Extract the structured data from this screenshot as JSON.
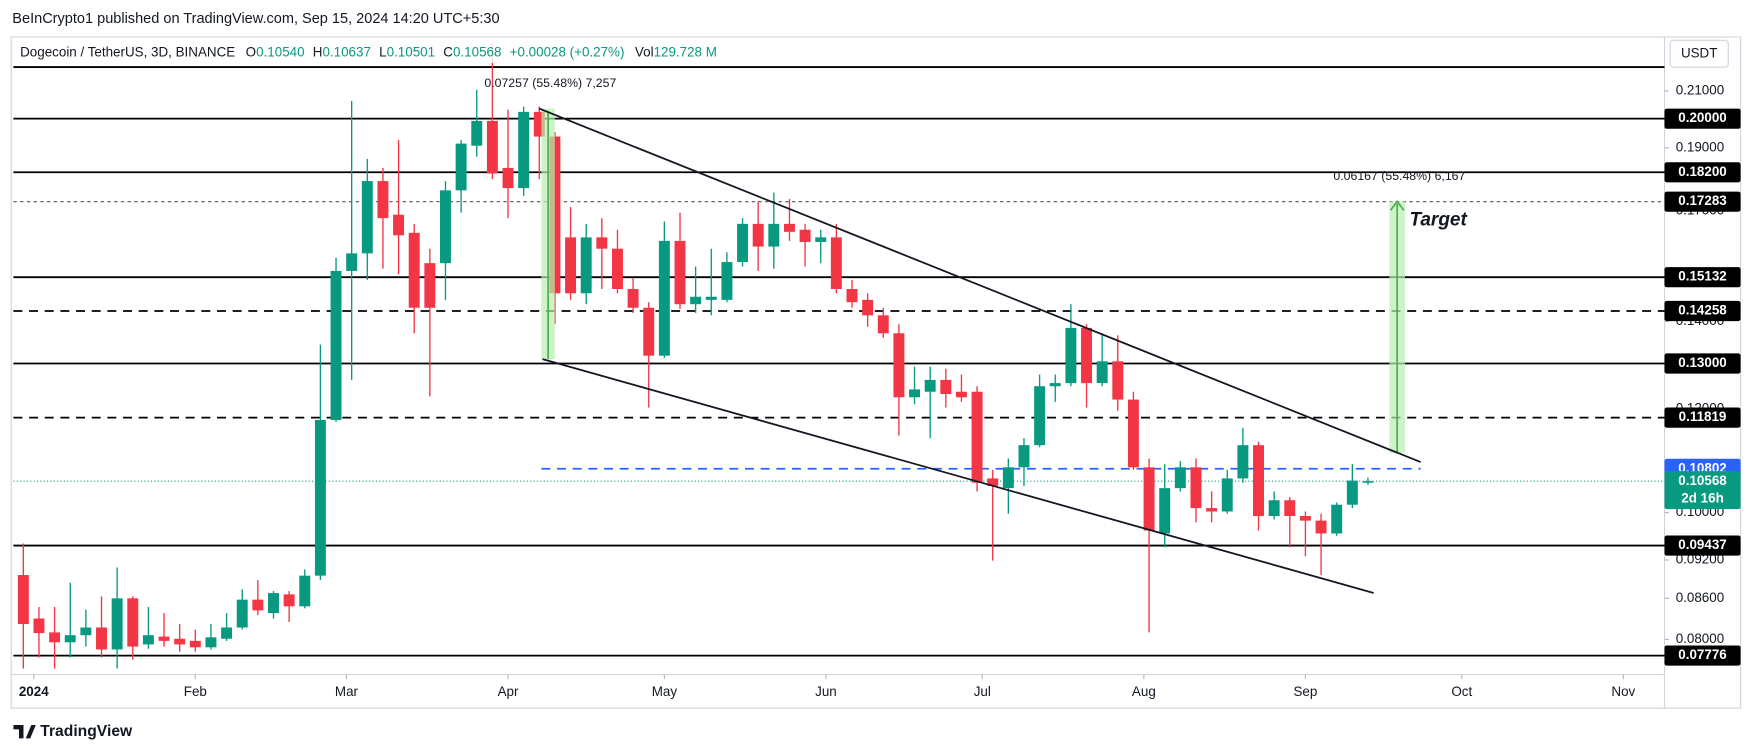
{
  "header": {
    "published": "BeInCrypto1 published on TradingView.com, Sep 15, 2024 14:20 UTC+5:30",
    "symbol": "Dogecoin / TetherUS, 3D, BINANCE",
    "o_label": "O",
    "o": "0.10540",
    "h_label": "H",
    "h": "0.10637",
    "l_label": "L",
    "l": "0.10501",
    "c_label": "C",
    "c": "0.10568",
    "change": "+0.00028 (+0.27%)",
    "vol_label": "Vol",
    "vol": "129.728 M",
    "currency": "USDT",
    "brand": "TradingView"
  },
  "chart_data": {
    "type": "candlestick",
    "log_scale": true,
    "grid": false,
    "up_color": "#089981",
    "down_color": "#f23645",
    "x": [
      -2,
      1,
      4,
      7,
      10,
      13,
      16,
      19,
      22,
      25,
      28,
      31,
      34,
      37,
      40,
      43,
      46,
      49,
      52,
      55,
      58,
      61,
      64,
      67,
      70,
      73,
      76,
      79,
      82,
      85,
      88,
      91,
      94,
      97,
      100,
      103,
      106,
      109,
      112,
      115,
      118,
      121,
      124,
      127,
      130,
      133,
      136,
      139,
      142,
      145,
      148,
      151,
      154,
      157,
      160,
      163,
      166,
      169,
      172,
      175,
      178,
      181,
      184,
      187,
      190,
      193,
      196,
      199,
      202,
      205,
      208,
      211,
      214,
      217,
      220,
      223,
      226,
      229,
      232,
      235,
      238,
      241,
      244,
      247,
      250,
      253,
      256
    ],
    "open": [
      0.0896,
      0.083,
      0.081,
      0.0796,
      0.0806,
      0.0817,
      0.0786,
      0.086,
      0.0793,
      0.0804,
      0.0801,
      0.0798,
      0.0789,
      0.0801,
      0.0817,
      0.0858,
      0.0838,
      0.0866,
      0.0848,
      0.0895,
      0.1177,
      0.153,
      0.1578,
      0.1792,
      0.1689,
      0.1636,
      0.1551,
      0.1551,
      0.1763,
      0.1907,
      0.1992,
      0.1834,
      0.177,
      0.2024,
      0.1938,
      0.1623,
      0.1471,
      0.1623,
      0.1591,
      0.1482,
      0.1434,
      0.1318,
      0.1613,
      0.1443,
      0.1454,
      0.1454,
      0.1554,
      0.1662,
      0.1597,
      0.1662,
      0.1645,
      0.161,
      0.1623,
      0.1482,
      0.1454,
      0.1415,
      0.1371,
      0.1225,
      0.1237,
      0.1263,
      0.1237,
      0.1237,
      0.1062,
      0.1044,
      0.1083,
      0.1126,
      0.1249,
      0.1256,
      0.1384,
      0.1256,
      0.1305,
      0.122,
      0.1083,
      0.0964,
      0.1044,
      0.1083,
      0.1008,
      0.1002,
      0.1062,
      0.1126,
      0.0994,
      0.1022,
      0.0994,
      0.0986,
      0.0964,
      0.1014,
      0.1054
    ],
    "high": [
      0.0947,
      0.0847,
      0.0847,
      0.0884,
      0.0843,
      0.0863,
      0.0908,
      0.0863,
      0.0847,
      0.0838,
      0.0822,
      0.0814,
      0.0822,
      0.0838,
      0.0874,
      0.0888,
      0.0871,
      0.0871,
      0.0905,
      0.1344,
      0.1566,
      0.2063,
      0.1863,
      0.1834,
      0.1926,
      0.1662,
      0.1591,
      0.1792,
      0.1926,
      0.2104,
      0.2285,
      0.2032,
      0.2043,
      0.2043,
      0.1953,
      0.1712,
      0.1662,
      0.1679,
      0.1645,
      0.1512,
      0.1448,
      0.1669,
      0.1695,
      0.1542,
      0.1591,
      0.1581,
      0.1679,
      0.1729,
      0.1756,
      0.1736,
      0.1662,
      0.1645,
      0.1662,
      0.1506,
      0.1471,
      0.1434,
      0.1393,
      0.1293,
      0.1293,
      0.1288,
      0.1275,
      0.1249,
      0.1078,
      0.11,
      0.114,
      0.1275,
      0.1275,
      0.1443,
      0.1393,
      0.1371,
      0.1366,
      0.1237,
      0.11,
      0.1089,
      0.1095,
      0.11,
      0.1038,
      0.1078,
      0.1161,
      0.1133,
      0.1038,
      0.1028,
      0.1002,
      0.0998,
      0.1018,
      0.1089,
      0.10637
    ],
    "low": [
      0.076,
      0.0775,
      0.076,
      0.0775,
      0.079,
      0.0775,
      0.076,
      0.0772,
      0.0787,
      0.079,
      0.0783,
      0.0783,
      0.0786,
      0.0798,
      0.0814,
      0.0835,
      0.083,
      0.0825,
      0.0845,
      0.0888,
      0.1173,
      0.1263,
      0.1506,
      0.1536,
      0.1521,
      0.1371,
      0.1227,
      0.1454,
      0.1695,
      0.187,
      0.1798,
      0.1679,
      0.1746,
      0.1798,
      0.1393,
      0.1454,
      0.1443,
      0.1482,
      0.1471,
      0.1421,
      0.1203,
      0.1313,
      0.1431,
      0.1421,
      0.1415,
      0.1448,
      0.1542,
      0.153,
      0.1536,
      0.1613,
      0.1542,
      0.1551,
      0.1471,
      0.1434,
      0.1387,
      0.136,
      0.1145,
      0.121,
      0.114,
      0.1203,
      0.1215,
      0.1038,
      0.0919,
      0.0998,
      0.1048,
      0.1122,
      0.1215,
      0.1249,
      0.1203,
      0.1249,
      0.1196,
      0.1078,
      0.081,
      0.0941,
      0.1038,
      0.0983,
      0.0983,
      0.0998,
      0.1054,
      0.0969,
      0.0988,
      0.0941,
      0.0926,
      0.0896,
      0.096,
      0.1008,
      0.10501
    ],
    "close": [
      0.0822,
      0.0809,
      0.0796,
      0.0806,
      0.0817,
      0.0786,
      0.086,
      0.079,
      0.0806,
      0.0798,
      0.0793,
      0.0789,
      0.0803,
      0.0817,
      0.0858,
      0.0842,
      0.0868,
      0.0848,
      0.0895,
      0.1177,
      0.153,
      0.1578,
      0.1792,
      0.1679,
      0.1629,
      0.1434,
      0.1434,
      0.1763,
      0.1914,
      0.1992,
      0.1816,
      0.177,
      0.2024,
      0.1938,
      0.1471,
      0.1471,
      0.1623,
      0.1591,
      0.1482,
      0.1434,
      0.1318,
      0.1613,
      0.1443,
      0.1462,
      0.1462,
      0.1554,
      0.1662,
      0.1597,
      0.1662,
      0.1639,
      0.161,
      0.1623,
      0.1482,
      0.1448,
      0.1415,
      0.1371,
      0.1225,
      0.1242,
      0.1263,
      0.1232,
      0.1225,
      0.1054,
      0.1048,
      0.1083,
      0.1126,
      0.1249,
      0.1256,
      0.1384,
      0.1256,
      0.1305,
      0.122,
      0.1083,
      0.0969,
      0.1044,
      0.1083,
      0.1008,
      0.1002,
      0.1062,
      0.1126,
      0.0994,
      0.1022,
      0.0994,
      0.0986,
      0.0964,
      0.1014,
      0.1058,
      0.10568
    ],
    "xlim": [
      -3.9,
      312.9
    ],
    "ylim": [
      0.0752,
      0.2309
    ],
    "xticks": [
      {
        "value": 0,
        "label": "2024"
      },
      {
        "value": 31,
        "label": "Feb"
      },
      {
        "value": 60,
        "label": "Mar"
      },
      {
        "value": 91,
        "label": "Apr"
      },
      {
        "value": 121,
        "label": "May"
      },
      {
        "value": 152,
        "label": "Jun"
      },
      {
        "value": 182,
        "label": "Jul"
      },
      {
        "value": 213,
        "label": "Aug"
      },
      {
        "value": 244,
        "label": "Sep"
      },
      {
        "value": 274,
        "label": "Oct"
      },
      {
        "value": 305,
        "label": "Nov"
      }
    ],
    "yticks": [
      {
        "value": 0.21,
        "label": "0.21000"
      },
      {
        "value": 0.19,
        "label": "0.19000"
      },
      {
        "value": 0.17,
        "label": "0.17000"
      },
      {
        "value": 0.14,
        "label": "0.14000"
      },
      {
        "value": 0.12,
        "label": "0.12000"
      },
      {
        "value": 0.1,
        "label": "0.10000"
      },
      {
        "value": 0.092,
        "label": "0.09200"
      },
      {
        "value": 0.086,
        "label": "0.08600"
      },
      {
        "value": 0.08,
        "label": "0.08000"
      }
    ],
    "levels": [
      {
        "value": 0.219,
        "style": "solid",
        "color": "#000000"
      },
      {
        "value": 0.2,
        "label": "0.20000",
        "style": "solid",
        "color": "#000000"
      },
      {
        "value": 0.182,
        "label": "0.18200",
        "style": "solid",
        "color": "#000000"
      },
      {
        "value": 0.17283,
        "label": "0.17283",
        "style": "dotted",
        "color": "#555555"
      },
      {
        "value": 0.15132,
        "label": "0.15132",
        "style": "solid",
        "color": "#000000"
      },
      {
        "value": 0.14258,
        "label": "0.14258",
        "style": "dashed",
        "color": "#000000"
      },
      {
        "value": 0.13,
        "label": "0.13000",
        "style": "solid",
        "color": "#000000"
      },
      {
        "value": 0.11819,
        "label": "0.11819",
        "style": "dashed",
        "color": "#000000"
      },
      {
        "value": 0.10802,
        "label": "0.10802",
        "style": "dashed",
        "color": "#2962ff"
      },
      {
        "value": 0.09437,
        "label": "0.09437",
        "style": "solid",
        "color": "#000000"
      },
      {
        "value": 0.07776,
        "label": "0.07776",
        "style": "solid",
        "color": "#000000"
      }
    ],
    "last_price": {
      "value": 0.10568,
      "label": "0.10568",
      "countdown": "2d 16h",
      "color": "#089981"
    },
    "annotations": {
      "measure_1": "0.07257 (55.48%) 7,257",
      "measure_2": "0.06167 (55.48%) 6,167",
      "target": "Target"
    }
  }
}
